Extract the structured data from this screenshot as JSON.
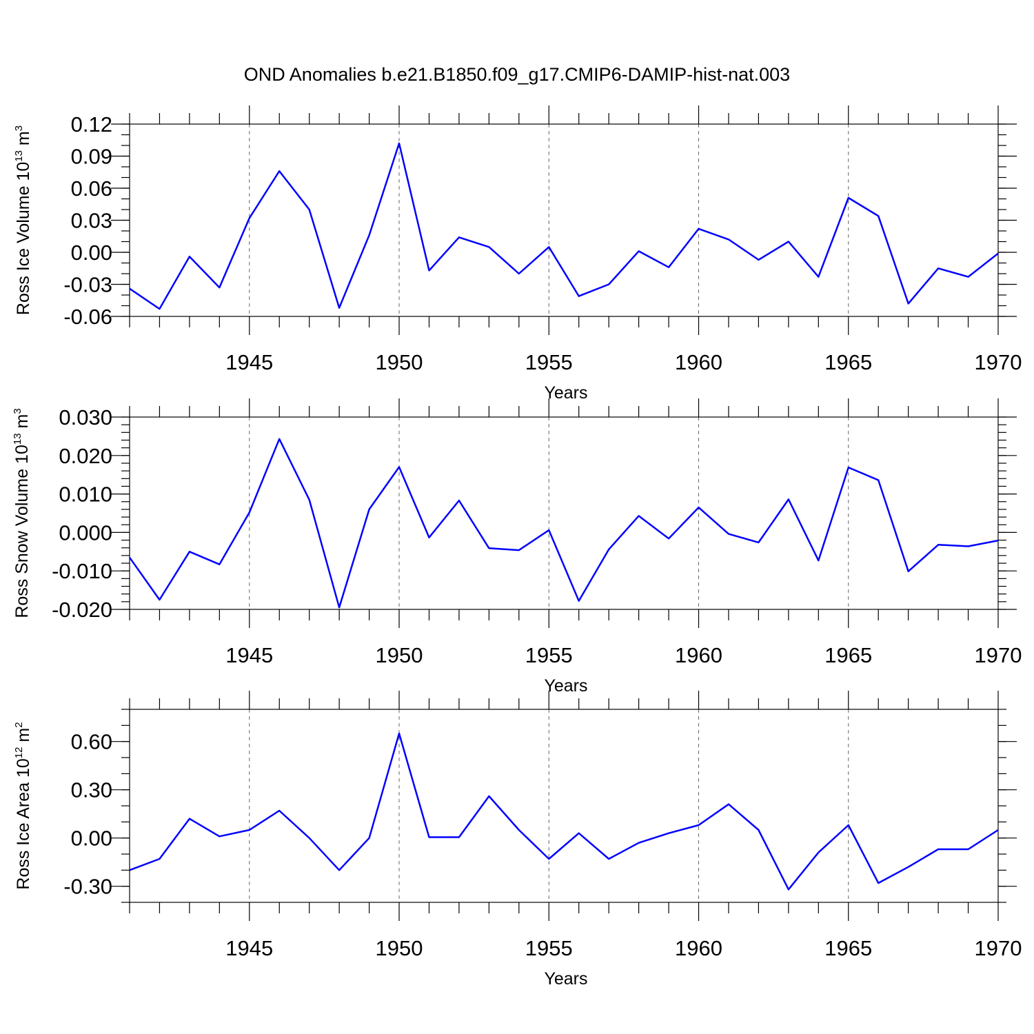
{
  "figure_title": "OND Anomalies b.e21.B1850.f09_g17.CMIP6-DAMIP-hist-nat.003",
  "colors": {
    "line": "#0000ff",
    "axes": "#000000",
    "grid": "#666666"
  },
  "chart_data": [
    {
      "type": "line",
      "title": "OND Anomalies b.e21.B1850.f09_g17.CMIP6-DAMIP-hist-nat.003",
      "ylabel": {
        "text": "Ross Ice Volume 10",
        "sup1": "13",
        "mid": " m",
        "sup2": "3"
      },
      "xlabel": "Years",
      "xlim": [
        1941,
        1970
      ],
      "ylim": [
        -0.06,
        0.12
      ],
      "grid": "vertical dashed at major x ticks",
      "x_ticks": [
        1945,
        1950,
        1955,
        1960,
        1965,
        1970
      ],
      "x_tick_labels": [
        "1945",
        "1950",
        "1955",
        "1960",
        "1965",
        "1970"
      ],
      "y_ticks": [
        -0.06,
        -0.03,
        0.0,
        0.03,
        0.06,
        0.09,
        0.12
      ],
      "y_tick_labels": [
        "-0.06",
        "-0.03",
        "0.00",
        "0.03",
        "0.06",
        "0.09",
        "0.12"
      ],
      "y_minor_step": 0.01,
      "x": [
        1941,
        1942,
        1943,
        1944,
        1945,
        1946,
        1947,
        1948,
        1949,
        1950,
        1951,
        1952,
        1953,
        1954,
        1955,
        1956,
        1957,
        1958,
        1959,
        1960,
        1961,
        1962,
        1963,
        1964,
        1965,
        1966,
        1967,
        1968,
        1969,
        1970
      ],
      "values": [
        -0.034,
        -0.053,
        -0.004,
        -0.033,
        0.032,
        0.076,
        0.04,
        -0.052,
        0.016,
        0.102,
        -0.017,
        0.014,
        0.005,
        -0.02,
        0.005,
        -0.041,
        -0.03,
        0.001,
        -0.014,
        0.022,
        0.012,
        -0.007,
        0.01,
        -0.023,
        0.051,
        0.034,
        -0.048,
        -0.015,
        -0.023,
        -0.001
      ]
    },
    {
      "type": "line",
      "ylabel": {
        "text": "Ross Snow Volume 10",
        "sup1": "13",
        "mid": " m",
        "sup2": "3"
      },
      "xlabel": "Years",
      "xlim": [
        1941,
        1970
      ],
      "ylim": [
        -0.02,
        0.03
      ],
      "grid": "vertical dashed at major x ticks",
      "x_ticks": [
        1945,
        1950,
        1955,
        1960,
        1965,
        1970
      ],
      "x_tick_labels": [
        "1945",
        "1950",
        "1955",
        "1960",
        "1965",
        "1970"
      ],
      "y_ticks": [
        -0.02,
        -0.01,
        0.0,
        0.01,
        0.02,
        0.03
      ],
      "y_tick_labels": [
        "-0.020",
        "-0.010",
        "0.000",
        "0.010",
        "0.020",
        "0.030"
      ],
      "y_minor_step": 0.002,
      "x": [
        1941,
        1942,
        1943,
        1944,
        1945,
        1946,
        1947,
        1948,
        1949,
        1950,
        1951,
        1952,
        1953,
        1954,
        1955,
        1956,
        1957,
        1958,
        1959,
        1960,
        1961,
        1962,
        1963,
        1964,
        1965,
        1966,
        1967,
        1968,
        1969,
        1970
      ],
      "values": [
        -0.0065,
        -0.0175,
        -0.005,
        -0.0083,
        0.0052,
        0.0243,
        0.0085,
        -0.0195,
        0.006,
        0.017,
        -0.0013,
        0.0083,
        -0.0041,
        -0.0046,
        0.0006,
        -0.0178,
        -0.0044,
        0.0043,
        -0.0016,
        0.0065,
        -0.0004,
        -0.0026,
        0.0086,
        -0.0073,
        0.0169,
        0.0136,
        -0.0101,
        -0.0032,
        -0.0036,
        -0.0021
      ]
    },
    {
      "type": "line",
      "ylabel": {
        "text": "Ross Ice Area 10",
        "sup1": "12",
        "mid": " m",
        "sup2": "2"
      },
      "xlabel": "Years",
      "xlim": [
        1941,
        1970
      ],
      "ylim": [
        -0.4,
        0.8
      ],
      "grid": "vertical dashed at major x ticks",
      "x_ticks": [
        1945,
        1950,
        1955,
        1960,
        1965,
        1970
      ],
      "x_tick_labels": [
        "1945",
        "1950",
        "1955",
        "1960",
        "1965",
        "1970"
      ],
      "y_ticks": [
        -0.3,
        0.0,
        0.3,
        0.6
      ],
      "y_tick_labels": [
        "-0.30",
        "0.00",
        "0.30",
        "0.60"
      ],
      "y_minor_step": 0.1,
      "x": [
        1941,
        1942,
        1943,
        1944,
        1945,
        1946,
        1947,
        1948,
        1949,
        1950,
        1951,
        1952,
        1953,
        1954,
        1955,
        1956,
        1957,
        1958,
        1959,
        1960,
        1961,
        1962,
        1963,
        1964,
        1965,
        1966,
        1967,
        1968,
        1969,
        1970
      ],
      "values": [
        -0.2,
        -0.13,
        0.12,
        0.01,
        0.05,
        0.17,
        0.0,
        -0.2,
        0.0,
        0.65,
        0.005,
        0.005,
        0.26,
        0.05,
        -0.13,
        0.03,
        -0.13,
        -0.03,
        0.03,
        0.08,
        0.21,
        0.05,
        -0.32,
        -0.09,
        0.08,
        -0.28,
        -0.18,
        -0.07,
        -0.07,
        0.05
      ]
    }
  ]
}
